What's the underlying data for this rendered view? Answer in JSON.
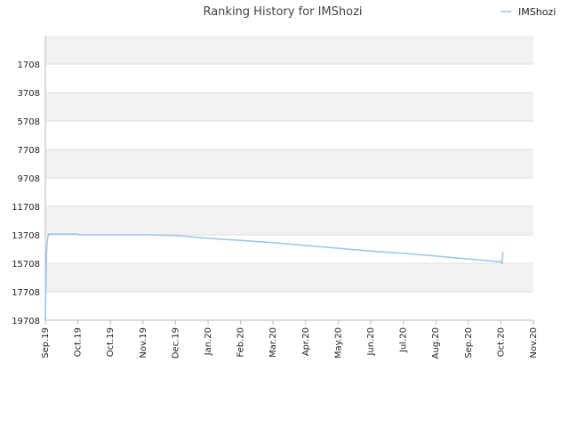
{
  "chart_data": {
    "type": "line",
    "title": "Ranking History for IMShozi",
    "xlabel": "",
    "ylabel": "",
    "y_axis_inverted": true,
    "ylim": [
      19708,
      -292
    ],
    "yticks": [
      1708,
      3708,
      5708,
      7708,
      9708,
      11708,
      13708,
      15708,
      17708,
      19708
    ],
    "xticks": [
      "Sep.19",
      "Oct.19",
      "Oct.19",
      "Nov.19",
      "Dec.19",
      "Jan.20",
      "Feb.20",
      "Mar.20",
      "Apr.20",
      "May.20",
      "Jun.20",
      "Jul.20",
      "Aug.20",
      "Sep.20",
      "Oct.20",
      "Nov.20"
    ],
    "legend": {
      "position": "top-right"
    },
    "grid": true,
    "colors": {
      "series": "#99c4ea",
      "band": "#f2f2f2",
      "grid": "#dddddd",
      "axis": "#bbbbbb"
    },
    "series": [
      {
        "name": "IMShozi",
        "x": [
          "Sep.19",
          "Sep.19",
          "Sep.19",
          "Sep.19",
          "Oct.19",
          "Oct.19",
          "Nov.19",
          "Dec.19",
          "Jan.20",
          "Feb.20",
          "Mar.20",
          "Apr.20",
          "May.20",
          "Jun.20",
          "Jul.20",
          "Aug.20",
          "Sep.20",
          "Oct.20",
          "Oct.20",
          "Oct.20"
        ],
        "y": [
          19708,
          15000,
          14000,
          13650,
          13650,
          13700,
          13700,
          13750,
          13950,
          14100,
          14250,
          14450,
          14650,
          14850,
          15000,
          15200,
          15400,
          15600,
          15700,
          14900
        ]
      }
    ]
  }
}
